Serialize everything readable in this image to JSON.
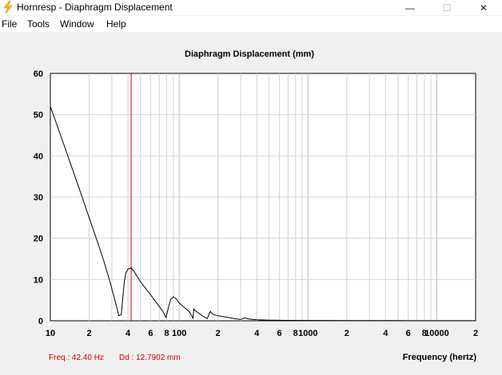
{
  "window": {
    "title": "Hornresp - Diaphragm Displacement",
    "minimize_glyph": "—",
    "maximize_glyph": "☐",
    "close_glyph": "✕"
  },
  "menu": {
    "items": [
      "File",
      "Tools",
      "Window",
      "Help"
    ]
  },
  "status": {
    "freq_text": "Freq : 42.40 Hz",
    "dd_text": "Dd : 12.7902 mm"
  },
  "colors": {
    "accent_red": "#cc0000",
    "curve": "#000000",
    "grid": "#d4d4d4",
    "grid_major": "#bdbdbd"
  },
  "chart_data": {
    "type": "line",
    "title": "Diaphragm Displacement (mm)",
    "xlabel": "Frequency (hertz)",
    "ylabel": "",
    "x_scale": "log",
    "xlim": [
      10,
      20000
    ],
    "ylim": [
      0,
      60
    ],
    "y_ticks": [
      0,
      10,
      20,
      30,
      40,
      50,
      60
    ],
    "x_tick_labels": [
      {
        "value": 10,
        "label": "10"
      },
      {
        "value": 20,
        "label": "2"
      },
      {
        "value": 40,
        "label": "4"
      },
      {
        "value": 60,
        "label": "6"
      },
      {
        "value": 80,
        "label": "8"
      },
      {
        "value": 100,
        "label": "100"
      },
      {
        "value": 200,
        "label": "2"
      },
      {
        "value": 400,
        "label": "4"
      },
      {
        "value": 600,
        "label": "6"
      },
      {
        "value": 800,
        "label": "8"
      },
      {
        "value": 1000,
        "label": "1000"
      },
      {
        "value": 2000,
        "label": "2"
      },
      {
        "value": 4000,
        "label": "4"
      },
      {
        "value": 6000,
        "label": "6"
      },
      {
        "value": 8000,
        "label": "8"
      },
      {
        "value": 10000,
        "label": "10000"
      },
      {
        "value": 20000,
        "label": "2"
      }
    ],
    "cursor_x": 42.4,
    "grid": true,
    "series": [
      {
        "x": [
          10,
          12,
          14,
          17,
          20,
          23,
          26,
          29,
          32,
          34,
          35.5,
          36.5,
          37.5,
          38.5,
          40,
          42.4,
          45,
          50,
          55,
          60,
          65,
          70,
          75,
          79,
          83,
          86,
          90,
          95,
          100,
          110,
          120,
          125,
          128,
          130,
          135,
          145,
          155,
          165,
          170,
          175,
          178,
          185,
          200,
          230,
          270,
          300,
          320,
          350,
          400,
          500,
          700,
          1000,
          2000,
          5000,
          10000,
          20000
        ],
        "y": [
          52,
          45,
          39,
          31.5,
          25,
          19.5,
          14.5,
          9.5,
          4.5,
          1.2,
          1.5,
          5.5,
          9.5,
          11.5,
          12.5,
          12.8,
          11.8,
          9.5,
          7.8,
          6.3,
          4.8,
          3.5,
          2.2,
          0.8,
          3.5,
          5.2,
          5.8,
          5.3,
          4.3,
          3.2,
          2.2,
          1.2,
          0.6,
          2.8,
          2.3,
          1.6,
          1.0,
          0.5,
          1.5,
          2.3,
          1.9,
          1.5,
          1.2,
          0.9,
          0.5,
          0.3,
          0.7,
          0.4,
          0.25,
          0.15,
          0.1,
          0.08,
          0.05,
          0.03,
          0.02,
          0.02
        ]
      }
    ]
  }
}
